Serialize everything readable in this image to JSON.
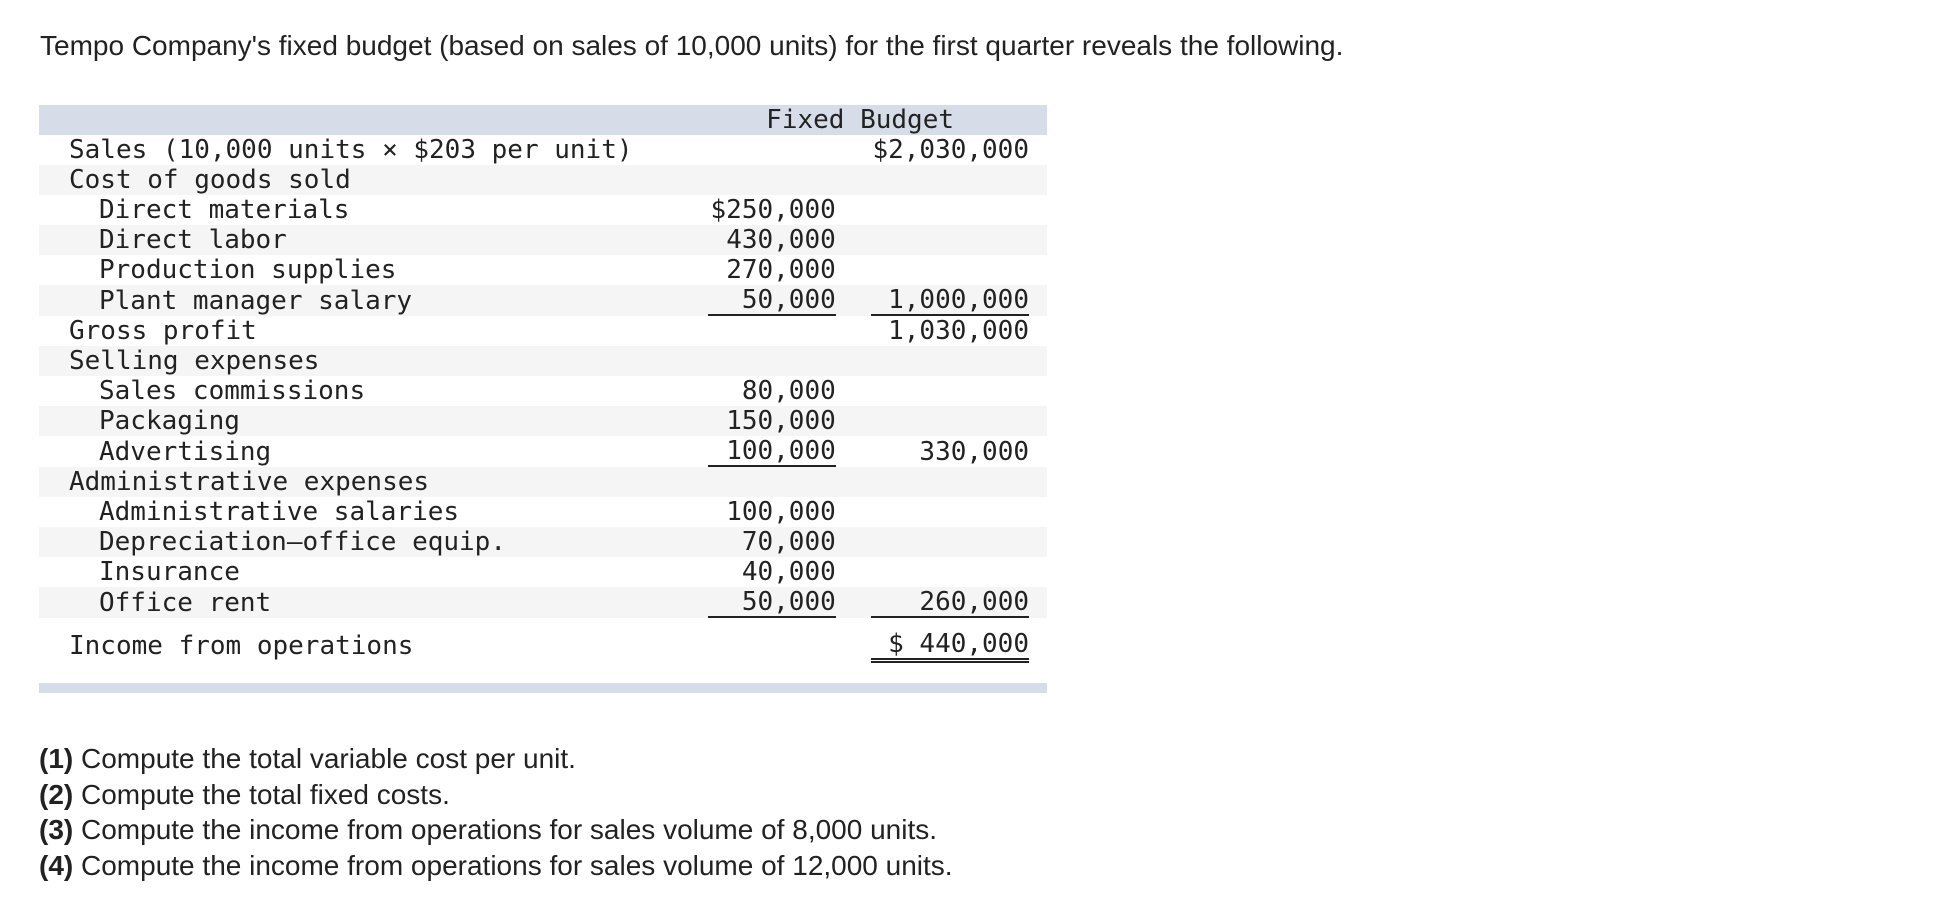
{
  "intro": "Tempo Company's fixed budget (based on sales of 10,000 units) for the first quarter reveals the following.",
  "table": {
    "header": "Fixed Budget",
    "rows": [
      [
        "Sales (10,000 units × $203 per unit)",
        "",
        "$2,030,000"
      ],
      [
        "Cost of goods sold",
        "",
        ""
      ],
      [
        "Direct materials",
        "$250,000",
        ""
      ],
      [
        "Direct labor",
        "430,000",
        ""
      ],
      [
        "Production supplies",
        "270,000",
        ""
      ],
      [
        "Plant manager salary",
        "50,000",
        "1,000,000"
      ],
      [
        "Gross profit",
        "",
        "1,030,000"
      ],
      [
        "Selling expenses",
        "",
        ""
      ],
      [
        "Sales commissions",
        "80,000",
        ""
      ],
      [
        "Packaging",
        "150,000",
        ""
      ],
      [
        "Advertising",
        "100,000",
        "330,000"
      ],
      [
        "Administrative expenses",
        "",
        ""
      ],
      [
        "Administrative salaries",
        "100,000",
        ""
      ],
      [
        "Depreciation—office equip.",
        "70,000",
        ""
      ],
      [
        "Insurance",
        "40,000",
        ""
      ],
      [
        "Office rent",
        "50,000",
        "260,000"
      ],
      [
        "Income from operations",
        "",
        "$ 440,000"
      ]
    ]
  },
  "questions": [
    {
      "number": "(1)",
      "text": "Compute the total variable cost per unit."
    },
    {
      "number": "(2)",
      "text": "Compute the total fixed costs."
    },
    {
      "number": "(3)",
      "text": "Compute the income from operations for sales volume of 8,000 units."
    },
    {
      "number": "(4)",
      "text": "Compute the income from operations for sales volume of 12,000 units."
    }
  ]
}
